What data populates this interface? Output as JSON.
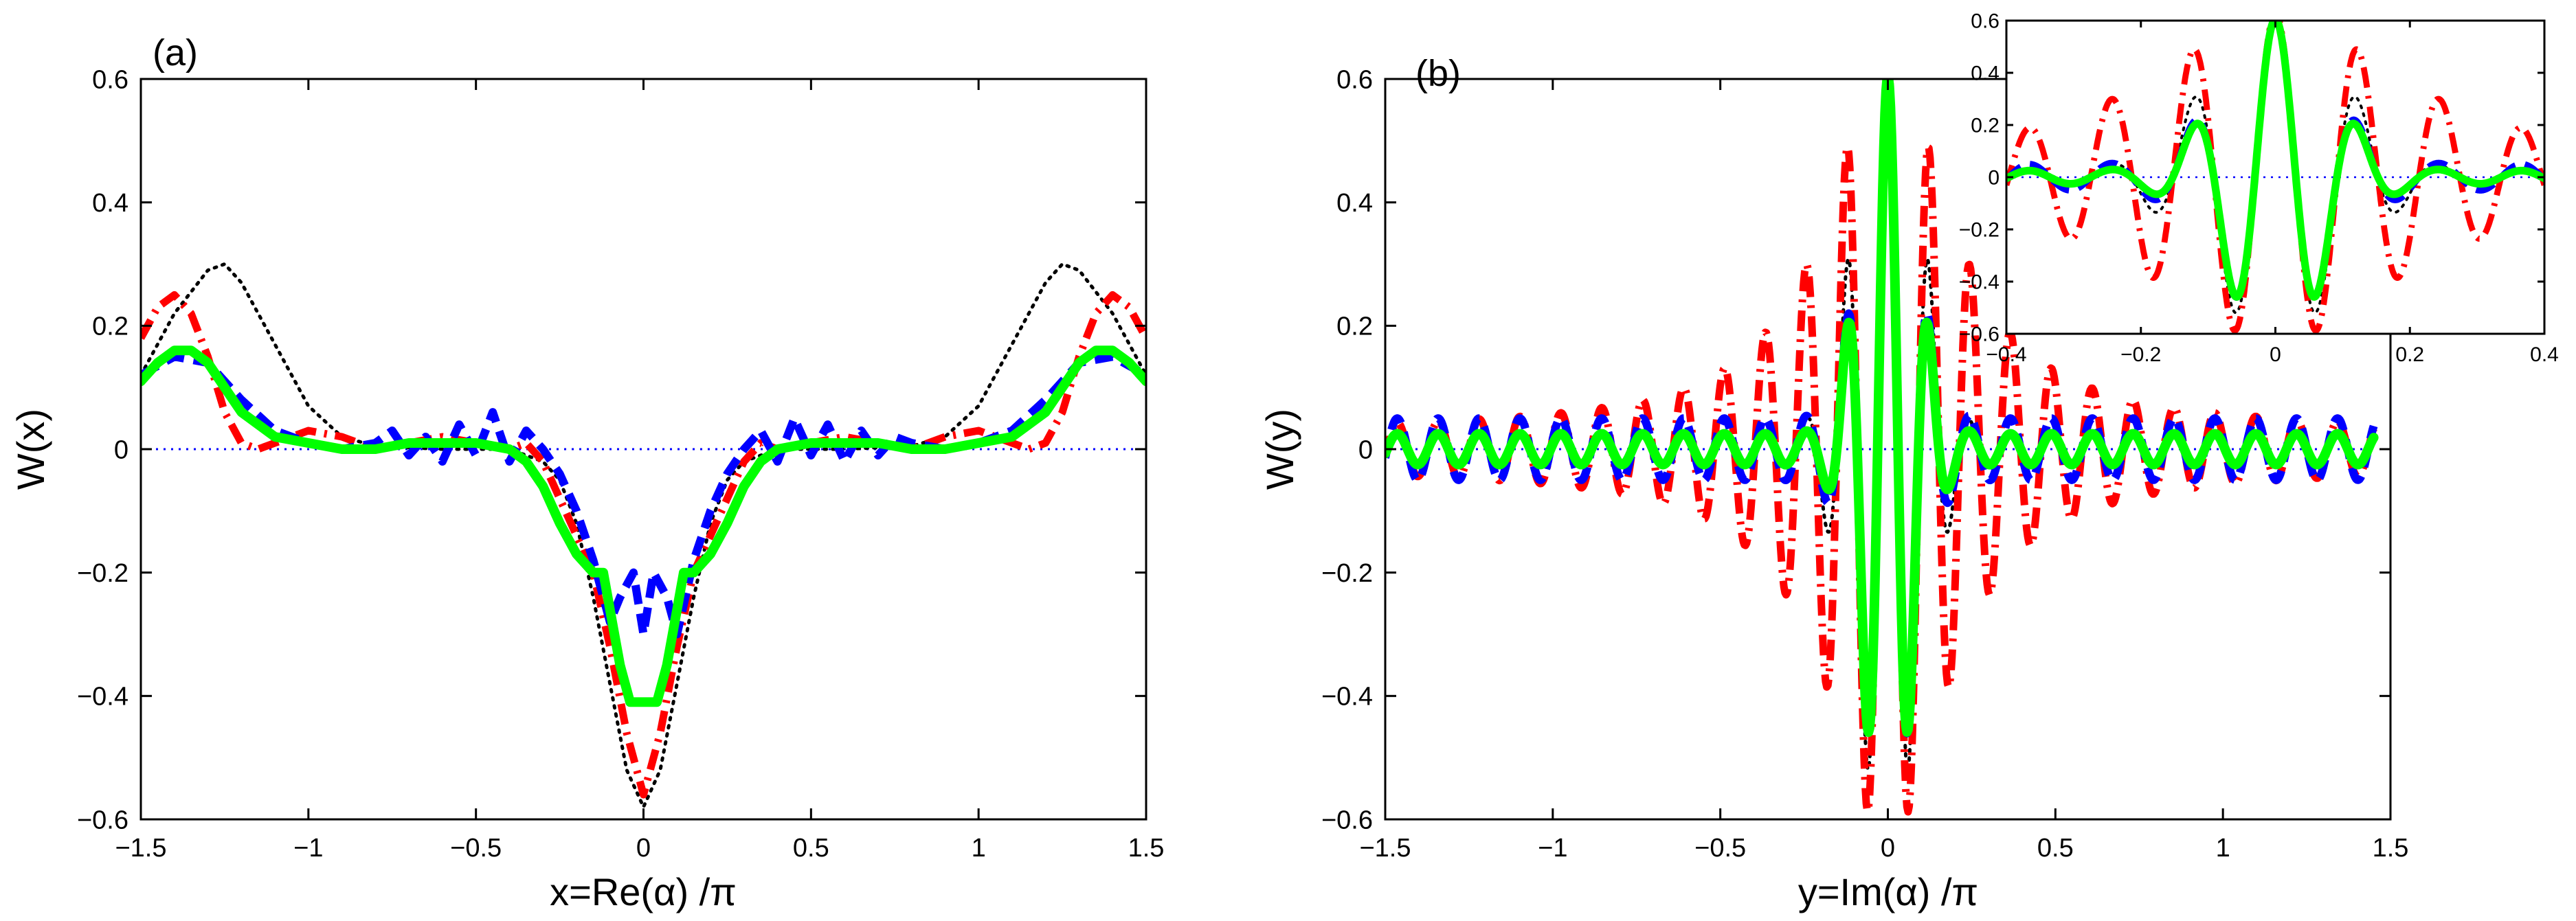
{
  "chart_data": [
    {
      "panel_label": "(a)",
      "type": "line",
      "xlabel": "x=Re(α) /π",
      "ylabel": "W(x)",
      "xlim": [
        -1.5,
        1.5
      ],
      "ylim": [
        -0.6,
        0.6
      ],
      "xticks": [
        -1.5,
        -1,
        -0.5,
        0,
        0.5,
        1,
        1.5
      ],
      "xtick_labels": [
        "−1.5",
        "−1",
        "−0.5",
        "0",
        "0.5",
        "1",
        "1.5"
      ],
      "yticks": [
        -0.6,
        -0.4,
        -0.2,
        0,
        0.2,
        0.4,
        0.6
      ],
      "ytick_labels": [
        "−0.6",
        "−0.4",
        "−0.2",
        "0",
        "0.2",
        "0.4",
        "0.6"
      ],
      "grid": false,
      "series": [
        {
          "name": "black dotted",
          "color": "#000000",
          "style": "dotted",
          "x": [
            -1.5,
            -1.4,
            -1.3,
            -1.25,
            -1.2,
            -1.1,
            -1.0,
            -0.9,
            -0.8,
            -0.6,
            -0.4,
            -0.3,
            -0.25,
            -0.2,
            -0.15,
            -0.1,
            -0.05,
            0,
            0.05,
            0.1,
            0.15,
            0.2,
            0.25,
            0.3,
            0.4,
            0.6,
            0.8,
            0.9,
            1.0,
            1.1,
            1.2,
            1.25,
            1.3,
            1.4,
            1.5
          ],
          "y": [
            0.12,
            0.22,
            0.29,
            0.3,
            0.27,
            0.17,
            0.07,
            0.02,
            0.005,
            0.0,
            0.0,
            -0.02,
            -0.05,
            -0.12,
            -0.24,
            -0.38,
            -0.52,
            -0.58,
            -0.52,
            -0.38,
            -0.24,
            -0.12,
            -0.05,
            -0.02,
            0.0,
            0.0,
            0.005,
            0.02,
            0.07,
            0.17,
            0.27,
            0.3,
            0.29,
            0.22,
            0.12
          ]
        },
        {
          "name": "red dash-dot",
          "color": "#ff0000",
          "style": "dashdot",
          "x": [
            -1.5,
            -1.45,
            -1.4,
            -1.35,
            -1.3,
            -1.25,
            -1.2,
            -1.15,
            -1.1,
            -1.0,
            -0.9,
            -0.8,
            -0.7,
            -0.6,
            -0.5,
            -0.4,
            -0.35,
            -0.3,
            -0.25,
            -0.2,
            -0.15,
            -0.1,
            -0.05,
            0,
            0.05,
            0.1,
            0.15,
            0.2,
            0.25,
            0.3,
            0.35,
            0.4,
            0.5,
            0.6,
            0.7,
            0.8,
            0.9,
            1.0,
            1.1,
            1.15,
            1.2,
            1.25,
            1.3,
            1.35,
            1.4,
            1.45,
            1.5
          ],
          "y": [
            0.18,
            0.23,
            0.25,
            0.22,
            0.15,
            0.06,
            0.01,
            0.0,
            0.01,
            0.03,
            0.02,
            0.0,
            0.01,
            0.02,
            0.01,
            0.0,
            0.01,
            -0.02,
            -0.08,
            -0.14,
            -0.2,
            -0.32,
            -0.46,
            -0.56,
            -0.46,
            -0.32,
            -0.2,
            -0.14,
            -0.08,
            -0.02,
            0.01,
            0.0,
            0.01,
            0.02,
            0.01,
            0.0,
            0.02,
            0.03,
            0.01,
            0.0,
            0.01,
            0.06,
            0.15,
            0.22,
            0.25,
            0.23,
            0.18
          ]
        },
        {
          "name": "blue dashed",
          "color": "#0000ff",
          "style": "dashed",
          "x": [
            -1.5,
            -1.4,
            -1.3,
            -1.2,
            -1.1,
            -1.0,
            -0.9,
            -0.8,
            -0.75,
            -0.7,
            -0.65,
            -0.6,
            -0.55,
            -0.5,
            -0.45,
            -0.4,
            -0.35,
            -0.3,
            -0.25,
            -0.2,
            -0.15,
            -0.1,
            -0.07,
            -0.03,
            0,
            0.03,
            0.07,
            0.1,
            0.15,
            0.2,
            0.25,
            0.3,
            0.35,
            0.4,
            0.45,
            0.5,
            0.55,
            0.6,
            0.65,
            0.7,
            0.75,
            0.8,
            0.9,
            1.0,
            1.1,
            1.2,
            1.3,
            1.4,
            1.5
          ],
          "y": [
            0.12,
            0.15,
            0.14,
            0.08,
            0.03,
            0.01,
            0.0,
            0.01,
            0.03,
            -0.01,
            0.02,
            -0.02,
            0.04,
            -0.01,
            0.06,
            -0.02,
            0.03,
            0.0,
            -0.04,
            -0.1,
            -0.18,
            -0.28,
            -0.24,
            -0.2,
            -0.3,
            -0.2,
            -0.24,
            -0.3,
            -0.18,
            -0.1,
            -0.04,
            0.0,
            0.03,
            -0.02,
            0.05,
            -0.01,
            0.04,
            -0.02,
            0.03,
            -0.01,
            0.02,
            0.01,
            0.0,
            0.01,
            0.03,
            0.08,
            0.14,
            0.15,
            0.12
          ]
        },
        {
          "name": "green solid",
          "color": "#00ff00",
          "style": "solid",
          "x": [
            -1.5,
            -1.45,
            -1.4,
            -1.35,
            -1.3,
            -1.25,
            -1.2,
            -1.1,
            -1.0,
            -0.9,
            -0.8,
            -0.7,
            -0.6,
            -0.5,
            -0.4,
            -0.35,
            -0.3,
            -0.25,
            -0.2,
            -0.15,
            -0.12,
            -0.1,
            -0.07,
            -0.04,
            0,
            0.04,
            0.07,
            0.1,
            0.12,
            0.15,
            0.2,
            0.25,
            0.3,
            0.35,
            0.4,
            0.5,
            0.6,
            0.7,
            0.8,
            0.9,
            1.0,
            1.1,
            1.2,
            1.25,
            1.3,
            1.35,
            1.4,
            1.45,
            1.5
          ],
          "y": [
            0.11,
            0.14,
            0.16,
            0.16,
            0.14,
            0.1,
            0.06,
            0.02,
            0.01,
            0.0,
            0.0,
            0.01,
            0.01,
            0.01,
            0.0,
            -0.02,
            -0.06,
            -0.12,
            -0.17,
            -0.2,
            -0.2,
            -0.26,
            -0.35,
            -0.41,
            -0.41,
            -0.41,
            -0.35,
            -0.26,
            -0.2,
            -0.2,
            -0.17,
            -0.12,
            -0.06,
            -0.02,
            0.0,
            0.01,
            0.01,
            0.01,
            0.0,
            0.0,
            0.01,
            0.02,
            0.06,
            0.1,
            0.14,
            0.16,
            0.16,
            0.14,
            0.11
          ]
        },
        {
          "name": "zero reference",
          "color": "#0000ff",
          "style": "fine-dotted",
          "x": [
            -1.5,
            1.5
          ],
          "y": [
            0,
            0
          ]
        }
      ]
    },
    {
      "panel_label": "(b)",
      "type": "line",
      "xlabel": "y=Im(α) /π",
      "ylabel": "W(y)",
      "xlim": [
        -1.5,
        1.5
      ],
      "ylim": [
        -0.6,
        0.6
      ],
      "xticks": [
        -1.5,
        -1,
        -0.5,
        0,
        0.5,
        1,
        1.5
      ],
      "xtick_labels": [
        "−1.5",
        "−1",
        "−0.5",
        "0",
        "0.5",
        "1",
        "1.5"
      ],
      "yticks": [
        -0.6,
        -0.4,
        -0.2,
        0,
        0.2,
        0.4,
        0.6
      ],
      "ytick_labels": [
        "−0.6",
        "−0.4",
        "−0.2",
        "0",
        "0.2",
        "0.4",
        "0.6"
      ],
      "grid": false,
      "series": [
        {
          "name": "red dash-dot",
          "color": "#ff0000",
          "style": "dashdot",
          "x_range": [
            -1.5,
            1.45
          ],
          "period": 0.122,
          "phase": 0.0,
          "envelope": "lorentz",
          "amplitude": 0.6,
          "width": 0.22,
          "tail": 0.03
        },
        {
          "name": "black dotted",
          "color": "#000000",
          "style": "dotted",
          "x_range": [
            -1.5,
            1.45
          ],
          "period": 0.122,
          "phase": 0.0,
          "envelope": "gauss",
          "amplitude": 0.6,
          "width": 0.14,
          "tail": 0.02
        },
        {
          "name": "blue dashed",
          "color": "#0000ff",
          "style": "dashed",
          "x_range": [
            -1.5,
            1.45
          ],
          "period": 0.122,
          "phase": 0.0,
          "envelope": "gauss",
          "amplitude": 0.55,
          "width": 0.11,
          "tail": 0.05
        },
        {
          "name": "green solid",
          "color": "#00ff00",
          "style": "solid",
          "x_range": [
            -1.5,
            1.45
          ],
          "period": 0.122,
          "phase": 0.0,
          "envelope": "gauss",
          "amplitude": 0.58,
          "width": 0.11,
          "tail": 0.025
        },
        {
          "name": "zero reference",
          "color": "#0000ff",
          "style": "fine-dotted",
          "x_range": [
            -1.5,
            1.45
          ],
          "constant": 0
        }
      ],
      "inset": {
        "type": "line",
        "xlim": [
          -0.4,
          0.4
        ],
        "ylim": [
          -0.6,
          0.6
        ],
        "xticks": [
          -0.4,
          -0.2,
          0,
          0.2,
          0.4
        ],
        "xtick_labels": [
          "−0.4",
          "−0.2",
          "0",
          "0.2",
          "0.4"
        ],
        "yticks": [
          -0.6,
          -0.4,
          -0.2,
          0,
          0.2,
          0.4,
          0.6
        ],
        "ytick_labels": [
          "−0.6",
          "−0.4",
          "−0.2",
          "0",
          "0.2",
          "0.4",
          "0.6"
        ],
        "series": [
          {
            "name": "red dash-dot",
            "color": "#ff0000",
            "style": "dashdot",
            "x_range": [
              -0.4,
              0.4
            ],
            "period": 0.122,
            "phase": 0.0,
            "envelope": "lorentz",
            "amplitude": 0.6,
            "width": 0.22,
            "tail": 0.03
          },
          {
            "name": "black dotted",
            "color": "#000000",
            "style": "dotted",
            "x_range": [
              -0.4,
              0.4
            ],
            "period": 0.122,
            "phase": 0.0,
            "envelope": "gauss",
            "amplitude": 0.6,
            "width": 0.14,
            "tail": 0.02
          },
          {
            "name": "blue dashed",
            "color": "#0000ff",
            "style": "dashed",
            "x_range": [
              -0.4,
              0.4
            ],
            "period": 0.122,
            "phase": 0.0,
            "envelope": "gauss",
            "amplitude": 0.55,
            "width": 0.11,
            "tail": 0.05
          },
          {
            "name": "green solid",
            "color": "#00ff00",
            "style": "solid",
            "x_range": [
              -0.4,
              0.4
            ],
            "period": 0.122,
            "phase": 0.0,
            "envelope": "gauss",
            "amplitude": 0.58,
            "width": 0.11,
            "tail": 0.025
          },
          {
            "name": "zero reference",
            "color": "#0000ff",
            "style": "fine-dotted",
            "x_range": [
              -0.4,
              0.4
            ],
            "constant": 0
          }
        ]
      }
    }
  ]
}
